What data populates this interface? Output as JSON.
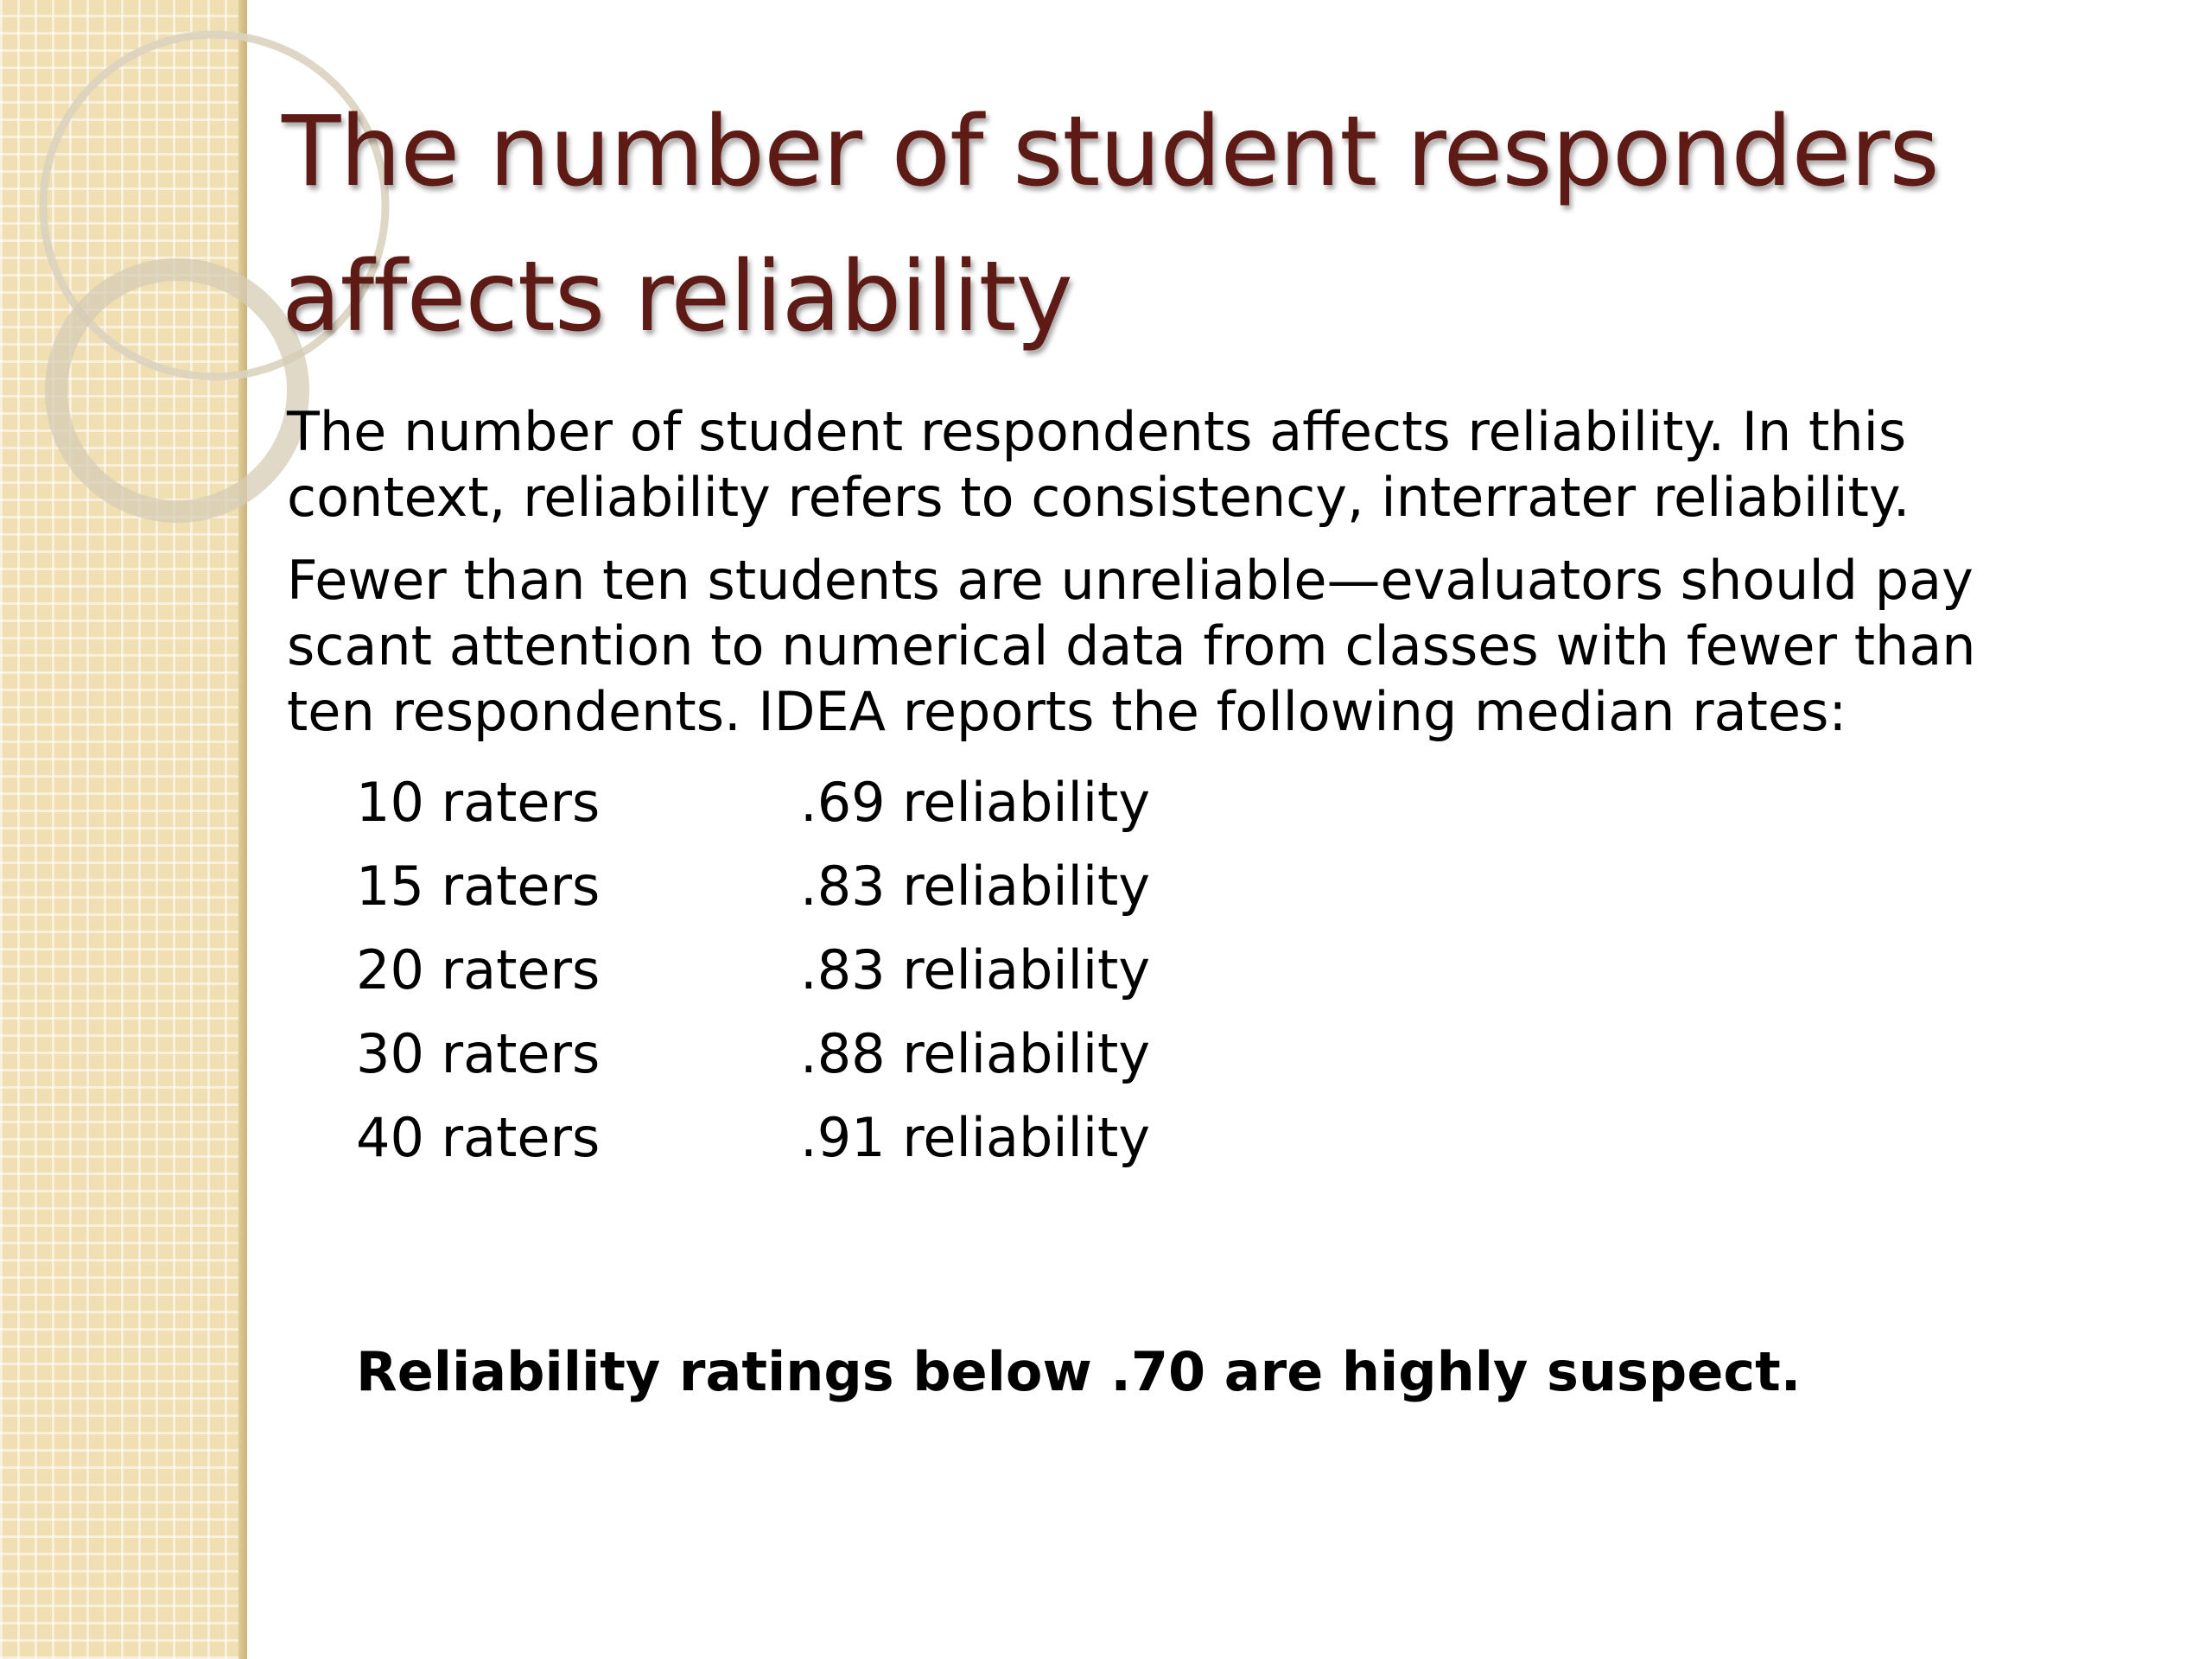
{
  "slide": {
    "title": "The number of student responders affects reliability",
    "paragraphs": [
      "The number of student respondents affects reliability. In this context, reliability refers to consistency,  interrater reliability.",
      "Fewer than ten students are unreliable—evaluators should pay scant attention to numerical data from classes with fewer than ten respondents. IDEA reports the following median rates:"
    ],
    "rates": [
      {
        "raters": "10 raters",
        "reliability": ".69 reliability"
      },
      {
        "raters": "15 raters",
        "reliability": ".83 reliability"
      },
      {
        "raters": "20 raters",
        "reliability": ".83 reliability"
      },
      {
        "raters": "30 raters",
        "reliability": ".88 reliability"
      },
      {
        "raters": "40 raters",
        "reliability": ".91 reliability"
      }
    ],
    "note": "Reliability ratings below .70 are highly suspect."
  },
  "theme": {
    "title_color": "#5e1a14",
    "band_color": "#efdfb2",
    "ring_color": "#d8ceb8"
  }
}
